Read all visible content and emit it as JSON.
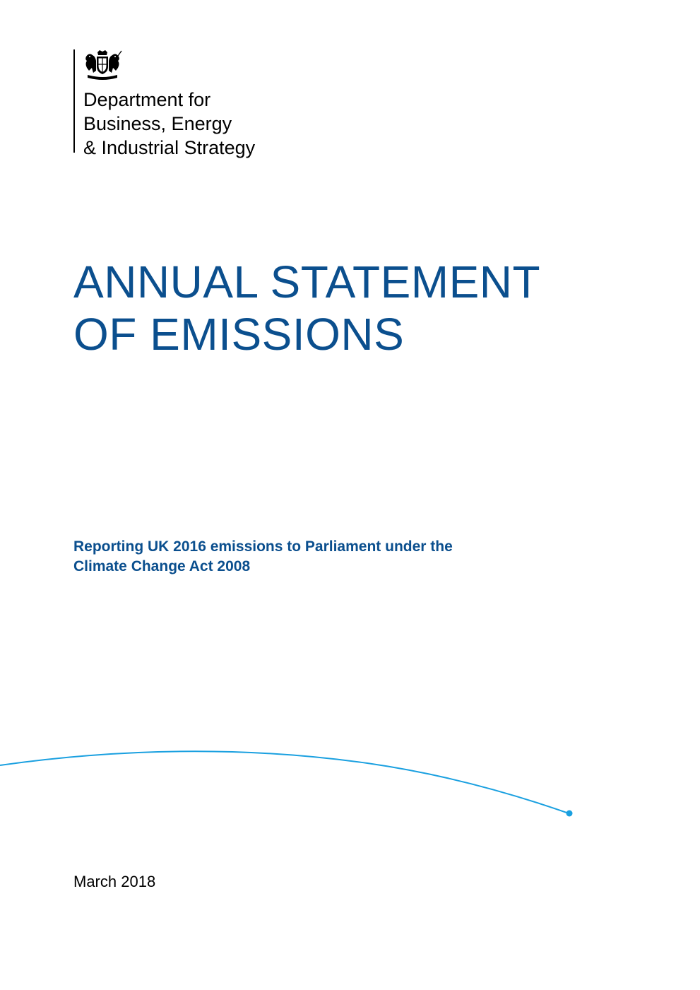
{
  "department": {
    "lines": [
      "Department for",
      "Business, Energy",
      "& Industrial Strategy"
    ]
  },
  "title": {
    "lines": [
      "ANNUAL STATEMENT",
      "OF EMISSIONS"
    ]
  },
  "subtitle": {
    "lines": [
      "Reporting UK 2016 emissions to Parliament under the",
      "Climate Change Act 2008"
    ]
  },
  "date": "March 2018",
  "colors": {
    "title": "#0b4f8e",
    "swoosh": "#1aa0e0",
    "text": "#000000"
  },
  "icons": {
    "crest": "royal-coat-of-arms-icon"
  }
}
